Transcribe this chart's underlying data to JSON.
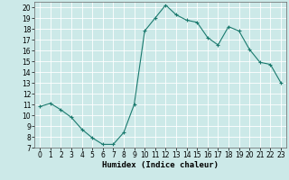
{
  "x": [
    0,
    1,
    2,
    3,
    4,
    5,
    6,
    7,
    8,
    9,
    10,
    11,
    12,
    13,
    14,
    15,
    16,
    17,
    18,
    19,
    20,
    21,
    22,
    23
  ],
  "y": [
    10.8,
    11.1,
    10.5,
    9.8,
    8.7,
    7.9,
    7.3,
    7.3,
    8.4,
    11.0,
    17.8,
    19.0,
    20.2,
    19.3,
    18.8,
    18.6,
    17.2,
    16.5,
    18.2,
    17.8,
    16.1,
    14.9,
    14.7,
    13.0
  ],
  "title": "",
  "xlabel": "Humidex (Indice chaleur)",
  "ylabel": "",
  "xlim": [
    -0.5,
    23.5
  ],
  "ylim": [
    7,
    20.5
  ],
  "yticks": [
    7,
    8,
    9,
    10,
    11,
    12,
    13,
    14,
    15,
    16,
    17,
    18,
    19,
    20
  ],
  "xticks": [
    0,
    1,
    2,
    3,
    4,
    5,
    6,
    7,
    8,
    9,
    10,
    11,
    12,
    13,
    14,
    15,
    16,
    17,
    18,
    19,
    20,
    21,
    22,
    23
  ],
  "line_color": "#1a7a6e",
  "marker": "+",
  "bg_color": "#cce9e8",
  "grid_color": "#ffffff",
  "label_fontsize": 6.5,
  "tick_fontsize": 5.5
}
